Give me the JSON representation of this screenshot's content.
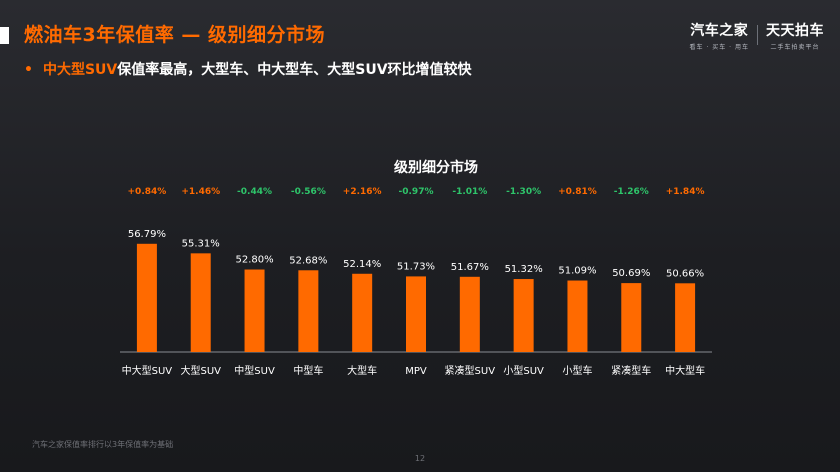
{
  "header": {
    "title": "燃油车3年保值率 — 级别细分市场",
    "bullet_highlight": "中大型SUV",
    "bullet_rest": "保值率最高，大型车、中大型车、大型SUV环比增值较快"
  },
  "logos": {
    "left_main": "汽车之家",
    "left_sub": "看车 · 买车 · 用车",
    "right_main": "天天拍车",
    "right_sub": "二手车拍卖平台"
  },
  "footer": {
    "note": "汽车之家保值率排行以3年保值率为基础",
    "page_number": "12"
  },
  "colors": {
    "accent": "#ff6a00",
    "bar": "#ff6a00",
    "positive_change": "#ff6a00",
    "negative_change": "#2ec46a"
  },
  "chart_data": {
    "type": "bar",
    "title": "级别细分市场",
    "categories": [
      "中大型SUV",
      "大型SUV",
      "中型SUV",
      "中型车",
      "大型车",
      "MPV",
      "紧凑型SUV",
      "小型SUV",
      "小型车",
      "紧凑型车",
      "中大型车"
    ],
    "values": [
      56.79,
      55.31,
      52.8,
      52.68,
      52.14,
      51.73,
      51.67,
      51.32,
      51.09,
      50.69,
      50.66
    ],
    "value_labels": [
      "56.79%",
      "55.31%",
      "52.80%",
      "52.68%",
      "52.14%",
      "51.73%",
      "51.67%",
      "51.32%",
      "51.09%",
      "50.69%",
      "50.66%"
    ],
    "changes": [
      "+0.84%",
      "+1.46%",
      "-0.44%",
      "-0.56%",
      "+2.16%",
      "-0.97%",
      "-1.01%",
      "-1.30%",
      "+0.81%",
      "-1.26%",
      "+1.84%"
    ],
    "unit": "%",
    "ylim": [
      40,
      58
    ],
    "grid": false,
    "legend": "none"
  }
}
